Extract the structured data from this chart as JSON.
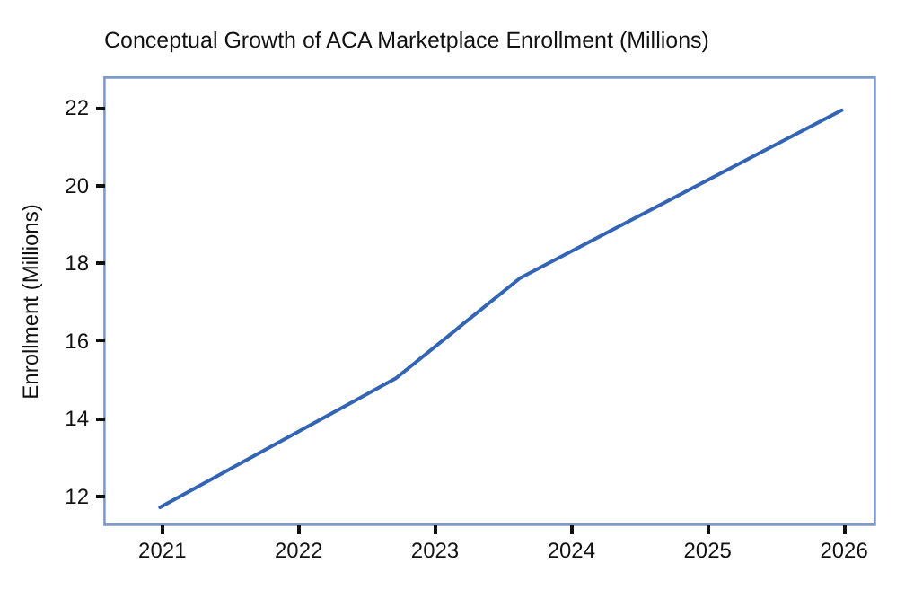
{
  "chart_data": {
    "type": "line",
    "title": "Conceptual Growth of ACA Marketplace Enrollment (Millions)",
    "ylabel": "Enrollment (Millions)",
    "x": [
      2020.99,
      2022.72,
      2023.63,
      2025.99
    ],
    "series": [
      {
        "color": "#3465b4",
        "values": [
          11.7,
          15.02,
          17.6,
          21.92
        ]
      }
    ],
    "xlim": [
      2020.58,
      2026.23
    ],
    "xticks": [
      2021,
      2022,
      2023,
      2024,
      2025,
      2026
    ],
    "ylim": [
      11.26,
      22.77
    ],
    "yticks": [
      12,
      14,
      16,
      18,
      20,
      22
    ],
    "grid": false,
    "marker": "none",
    "line_style": "solid"
  }
}
